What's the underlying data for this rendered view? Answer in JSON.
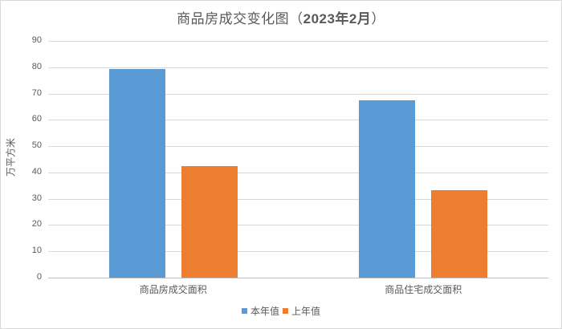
{
  "chart_data": {
    "type": "bar",
    "title": "商品房成交变化图（2023年2月）",
    "title_parts": {
      "prefix": "商品房成交变化图（",
      "year_month": "2023年2月",
      "suffix": "）"
    },
    "xlabel": "",
    "ylabel": "万平方米",
    "ylim": [
      0,
      90
    ],
    "yticks": [
      "0",
      "10",
      "20",
      "30",
      "40",
      "50",
      "60",
      "70",
      "80",
      "90"
    ],
    "grid": true,
    "legend_position": "bottom",
    "categories": [
      "商品房成交面积",
      "商品住宅成交面积"
    ],
    "series": [
      {
        "name": "本年值",
        "color": "#5b9bd5",
        "values": [
          79.3,
          67.4
        ]
      },
      {
        "name": "上年值",
        "color": "#ed7d31",
        "values": [
          42.4,
          33.2
        ]
      }
    ]
  }
}
